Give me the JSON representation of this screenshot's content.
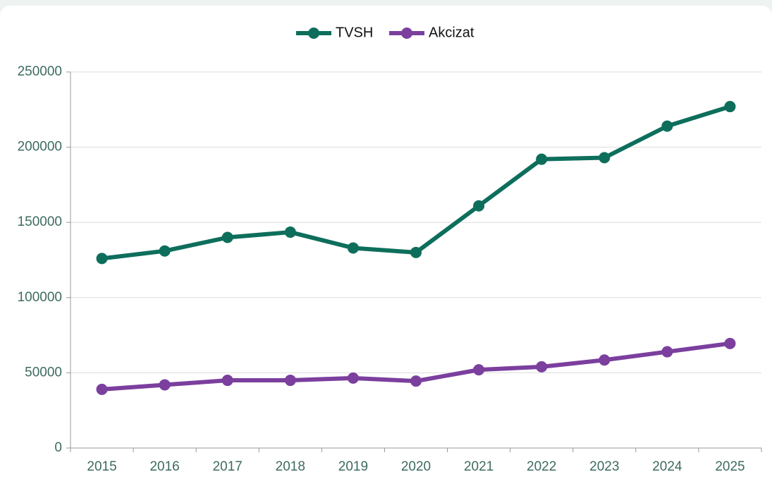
{
  "chart_data": {
    "type": "line",
    "categories": [
      "2015",
      "2016",
      "2017",
      "2018",
      "2019",
      "2020",
      "2021",
      "2022",
      "2023",
      "2024",
      "2025"
    ],
    "series": [
      {
        "name": "TVSH",
        "color": "#0e6e5c",
        "values": [
          126000,
          131000,
          140000,
          143500,
          133000,
          130000,
          161000,
          192000,
          193000,
          214000,
          227000
        ]
      },
      {
        "name": "Akcizat",
        "color": "#7b3f9e",
        "values": [
          39000,
          42000,
          45000,
          45000,
          46500,
          44500,
          52000,
          54000,
          58500,
          64000,
          69500
        ]
      }
    ],
    "ylim": [
      0,
      250000
    ],
    "yticks": [
      0,
      50000,
      100000,
      150000,
      200000,
      250000
    ],
    "grid": true,
    "legend": "top"
  }
}
